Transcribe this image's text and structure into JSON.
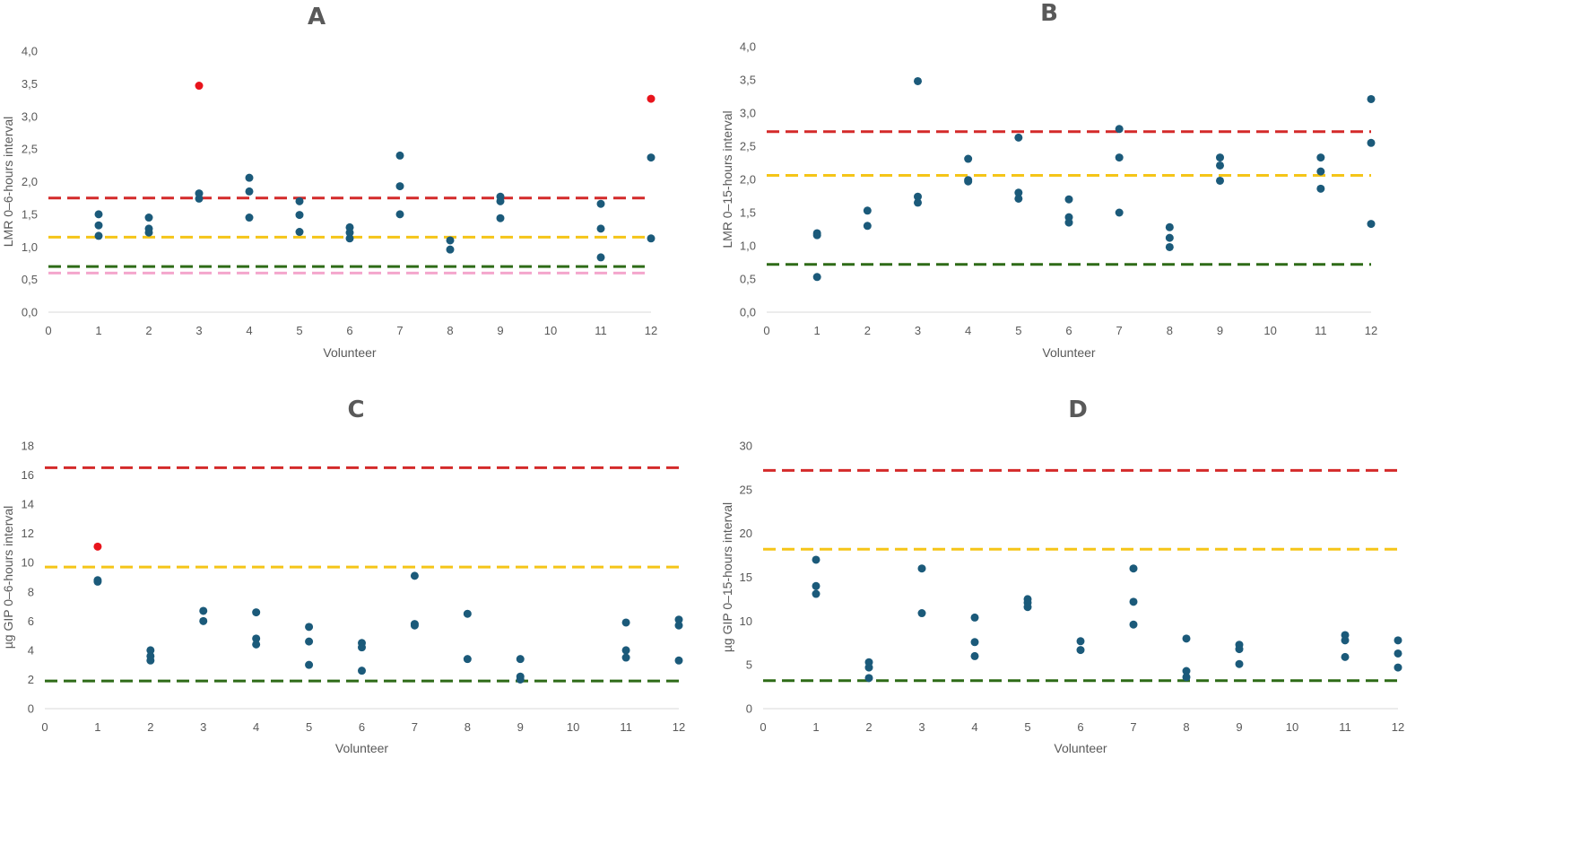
{
  "chart_data": [
    {
      "type": "scatter",
      "panel": "A",
      "title": "A",
      "xlabel": "Volunteer",
      "ylabel": "LMR 0–6-hours interval",
      "xlim": [
        0,
        12
      ],
      "ylim": [
        0,
        4
      ],
      "x_ticks": [
        "0",
        "1",
        "2",
        "3",
        "4",
        "5",
        "6",
        "7",
        "8",
        "9",
        "10",
        "11",
        "12"
      ],
      "y_ticks": [
        "0,0",
        "0,5",
        "1,0",
        "1,5",
        "2,0",
        "2,5",
        "3,0",
        "3,5",
        "4,0"
      ],
      "grid": false,
      "colors": {
        "point": "#1b5a7a",
        "highlight": "#e8141c"
      },
      "reference_lines": [
        {
          "name": "red-line",
          "value": 1.75,
          "color": "#d42a2a"
        },
        {
          "name": "yellow-line",
          "value": 1.15,
          "color": "#f5c518"
        },
        {
          "name": "green-line",
          "value": 0.7,
          "color": "#2e6b17"
        },
        {
          "name": "pink-line",
          "value": 0.6,
          "color": "#f4a6cc"
        }
      ],
      "points": [
        {
          "x": 1,
          "y": 1.5
        },
        {
          "x": 1,
          "y": 1.33
        },
        {
          "x": 1,
          "y": 1.17
        },
        {
          "x": 2,
          "y": 1.45
        },
        {
          "x": 2,
          "y": 1.28
        },
        {
          "x": 2,
          "y": 1.22
        },
        {
          "x": 3,
          "y": 3.47,
          "highlight": true
        },
        {
          "x": 3,
          "y": 1.82
        },
        {
          "x": 3,
          "y": 1.74
        },
        {
          "x": 4,
          "y": 2.06
        },
        {
          "x": 4,
          "y": 1.85
        },
        {
          "x": 4,
          "y": 1.45
        },
        {
          "x": 5,
          "y": 1.7
        },
        {
          "x": 5,
          "y": 1.49
        },
        {
          "x": 5,
          "y": 1.23
        },
        {
          "x": 6,
          "y": 1.3
        },
        {
          "x": 6,
          "y": 1.22
        },
        {
          "x": 6,
          "y": 1.13
        },
        {
          "x": 7,
          "y": 2.4
        },
        {
          "x": 7,
          "y": 1.93
        },
        {
          "x": 7,
          "y": 1.5
        },
        {
          "x": 8,
          "y": 1.1
        },
        {
          "x": 8,
          "y": 0.96
        },
        {
          "x": 9,
          "y": 1.77
        },
        {
          "x": 9,
          "y": 1.7
        },
        {
          "x": 9,
          "y": 1.44
        },
        {
          "x": 11,
          "y": 1.66
        },
        {
          "x": 11,
          "y": 1.28
        },
        {
          "x": 11,
          "y": 0.84
        },
        {
          "x": 12,
          "y": 3.27,
          "highlight": true
        },
        {
          "x": 12,
          "y": 2.37
        },
        {
          "x": 12,
          "y": 1.13
        }
      ]
    },
    {
      "type": "scatter",
      "panel": "B",
      "title": "B",
      "xlabel": "Volunteer",
      "ylabel": "LMR 0–15-hours interval",
      "xlim": [
        0,
        12
      ],
      "ylim": [
        0,
        4
      ],
      "x_ticks": [
        "0",
        "1",
        "2",
        "3",
        "4",
        "5",
        "6",
        "7",
        "8",
        "9",
        "10",
        "11",
        "12"
      ],
      "y_ticks": [
        "0,0",
        "0,5",
        "1,0",
        "1,5",
        "2,0",
        "2,5",
        "3,0",
        "3,5",
        "4,0"
      ],
      "grid": false,
      "colors": {
        "point": "#1b5a7a",
        "highlight": "#e8141c"
      },
      "reference_lines": [
        {
          "name": "red-line",
          "value": 2.72,
          "color": "#d42a2a"
        },
        {
          "name": "yellow-line",
          "value": 2.06,
          "color": "#f5c518"
        },
        {
          "name": "green-line",
          "value": 0.72,
          "color": "#2e6b17"
        }
      ],
      "points": [
        {
          "x": 1,
          "y": 1.19
        },
        {
          "x": 1,
          "y": 1.16
        },
        {
          "x": 1,
          "y": 0.53
        },
        {
          "x": 2,
          "y": 1.53
        },
        {
          "x": 2,
          "y": 1.3
        },
        {
          "x": 3,
          "y": 3.48
        },
        {
          "x": 3,
          "y": 1.74
        },
        {
          "x": 3,
          "y": 1.65
        },
        {
          "x": 4,
          "y": 2.31
        },
        {
          "x": 4,
          "y": 1.99
        },
        {
          "x": 4,
          "y": 1.97
        },
        {
          "x": 5,
          "y": 2.63
        },
        {
          "x": 5,
          "y": 1.8
        },
        {
          "x": 5,
          "y": 1.71
        },
        {
          "x": 6,
          "y": 1.7
        },
        {
          "x": 6,
          "y": 1.43
        },
        {
          "x": 6,
          "y": 1.35
        },
        {
          "x": 7,
          "y": 2.76
        },
        {
          "x": 7,
          "y": 2.33
        },
        {
          "x": 7,
          "y": 1.5
        },
        {
          "x": 8,
          "y": 1.28
        },
        {
          "x": 8,
          "y": 1.12
        },
        {
          "x": 8,
          "y": 0.98
        },
        {
          "x": 9,
          "y": 2.33
        },
        {
          "x": 9,
          "y": 2.21
        },
        {
          "x": 9,
          "y": 1.98
        },
        {
          "x": 11,
          "y": 2.33
        },
        {
          "x": 11,
          "y": 2.12
        },
        {
          "x": 11,
          "y": 1.86
        },
        {
          "x": 12,
          "y": 3.21
        },
        {
          "x": 12,
          "y": 2.55
        },
        {
          "x": 12,
          "y": 1.33
        }
      ]
    },
    {
      "type": "scatter",
      "panel": "C",
      "title": "C",
      "xlabel": "Volunteer",
      "ylabel": "µg GIP 0–6-hours interval",
      "xlim": [
        0,
        12
      ],
      "ylim": [
        0,
        18
      ],
      "x_ticks": [
        "0",
        "1",
        "2",
        "3",
        "4",
        "5",
        "6",
        "7",
        "8",
        "9",
        "10",
        "11",
        "12"
      ],
      "y_ticks": [
        "0",
        "2",
        "4",
        "6",
        "8",
        "10",
        "12",
        "14",
        "16",
        "18"
      ],
      "grid": false,
      "colors": {
        "point": "#1b5a7a",
        "highlight": "#e8141c"
      },
      "reference_lines": [
        {
          "name": "red-line",
          "value": 16.5,
          "color": "#d42a2a"
        },
        {
          "name": "yellow-line",
          "value": 9.7,
          "color": "#f5c518"
        },
        {
          "name": "green-line",
          "value": 1.9,
          "color": "#2e6b17"
        }
      ],
      "points": [
        {
          "x": 1,
          "y": 11.1,
          "highlight": true
        },
        {
          "x": 1,
          "y": 8.8
        },
        {
          "x": 1,
          "y": 8.7
        },
        {
          "x": 2,
          "y": 4.0
        },
        {
          "x": 2,
          "y": 3.6
        },
        {
          "x": 2,
          "y": 3.3
        },
        {
          "x": 3,
          "y": 6.7
        },
        {
          "x": 3,
          "y": 6.0
        },
        {
          "x": 4,
          "y": 6.6
        },
        {
          "x": 4,
          "y": 4.8
        },
        {
          "x": 4,
          "y": 4.4
        },
        {
          "x": 5,
          "y": 5.6
        },
        {
          "x": 5,
          "y": 4.6
        },
        {
          "x": 5,
          "y": 3.0
        },
        {
          "x": 6,
          "y": 4.5
        },
        {
          "x": 6,
          "y": 4.2
        },
        {
          "x": 6,
          "y": 2.6
        },
        {
          "x": 7,
          "y": 9.1
        },
        {
          "x": 7,
          "y": 5.8
        },
        {
          "x": 7,
          "y": 5.7
        },
        {
          "x": 8,
          "y": 6.5
        },
        {
          "x": 8,
          "y": 3.4
        },
        {
          "x": 9,
          "y": 3.4
        },
        {
          "x": 9,
          "y": 2.2
        },
        {
          "x": 9,
          "y": 2.0
        },
        {
          "x": 11,
          "y": 5.9
        },
        {
          "x": 11,
          "y": 4.0
        },
        {
          "x": 11,
          "y": 3.5
        },
        {
          "x": 12,
          "y": 6.1
        },
        {
          "x": 12,
          "y": 5.7
        },
        {
          "x": 12,
          "y": 3.3
        }
      ]
    },
    {
      "type": "scatter",
      "panel": "D",
      "title": "D",
      "xlabel": "Volunteer",
      "ylabel": "µg GIP 0–15-hours interval",
      "xlim": [
        0,
        12
      ],
      "ylim": [
        0,
        30
      ],
      "x_ticks": [
        "0",
        "1",
        "2",
        "3",
        "4",
        "5",
        "6",
        "7",
        "8",
        "9",
        "10",
        "11",
        "12"
      ],
      "y_ticks": [
        "0",
        "5",
        "10",
        "15",
        "20",
        "25",
        "30"
      ],
      "grid": false,
      "colors": {
        "point": "#1b5a7a",
        "highlight": "#e8141c"
      },
      "reference_lines": [
        {
          "name": "red-line",
          "value": 27.2,
          "color": "#d42a2a"
        },
        {
          "name": "yellow-line",
          "value": 18.2,
          "color": "#f5c518"
        },
        {
          "name": "green-line",
          "value": 3.2,
          "color": "#2e6b17"
        }
      ],
      "points": [
        {
          "x": 1,
          "y": 17.0
        },
        {
          "x": 1,
          "y": 14.0
        },
        {
          "x": 1,
          "y": 13.1
        },
        {
          "x": 2,
          "y": 5.3
        },
        {
          "x": 2,
          "y": 4.7
        },
        {
          "x": 2,
          "y": 3.5
        },
        {
          "x": 3,
          "y": 16.0
        },
        {
          "x": 3,
          "y": 10.9
        },
        {
          "x": 4,
          "y": 10.4
        },
        {
          "x": 4,
          "y": 7.6
        },
        {
          "x": 4,
          "y": 6.0
        },
        {
          "x": 5,
          "y": 12.5
        },
        {
          "x": 5,
          "y": 12.1
        },
        {
          "x": 5,
          "y": 11.6
        },
        {
          "x": 6,
          "y": 7.7
        },
        {
          "x": 6,
          "y": 6.7
        },
        {
          "x": 7,
          "y": 16.0
        },
        {
          "x": 7,
          "y": 12.2
        },
        {
          "x": 7,
          "y": 9.6
        },
        {
          "x": 8,
          "y": 8.0
        },
        {
          "x": 8,
          "y": 4.3
        },
        {
          "x": 8,
          "y": 3.6
        },
        {
          "x": 9,
          "y": 7.3
        },
        {
          "x": 9,
          "y": 6.8
        },
        {
          "x": 9,
          "y": 5.1
        },
        {
          "x": 11,
          "y": 8.4
        },
        {
          "x": 11,
          "y": 7.8
        },
        {
          "x": 11,
          "y": 5.9
        },
        {
          "x": 12,
          "y": 7.8
        },
        {
          "x": 12,
          "y": 6.3
        },
        {
          "x": 12,
          "y": 4.7
        }
      ]
    }
  ]
}
